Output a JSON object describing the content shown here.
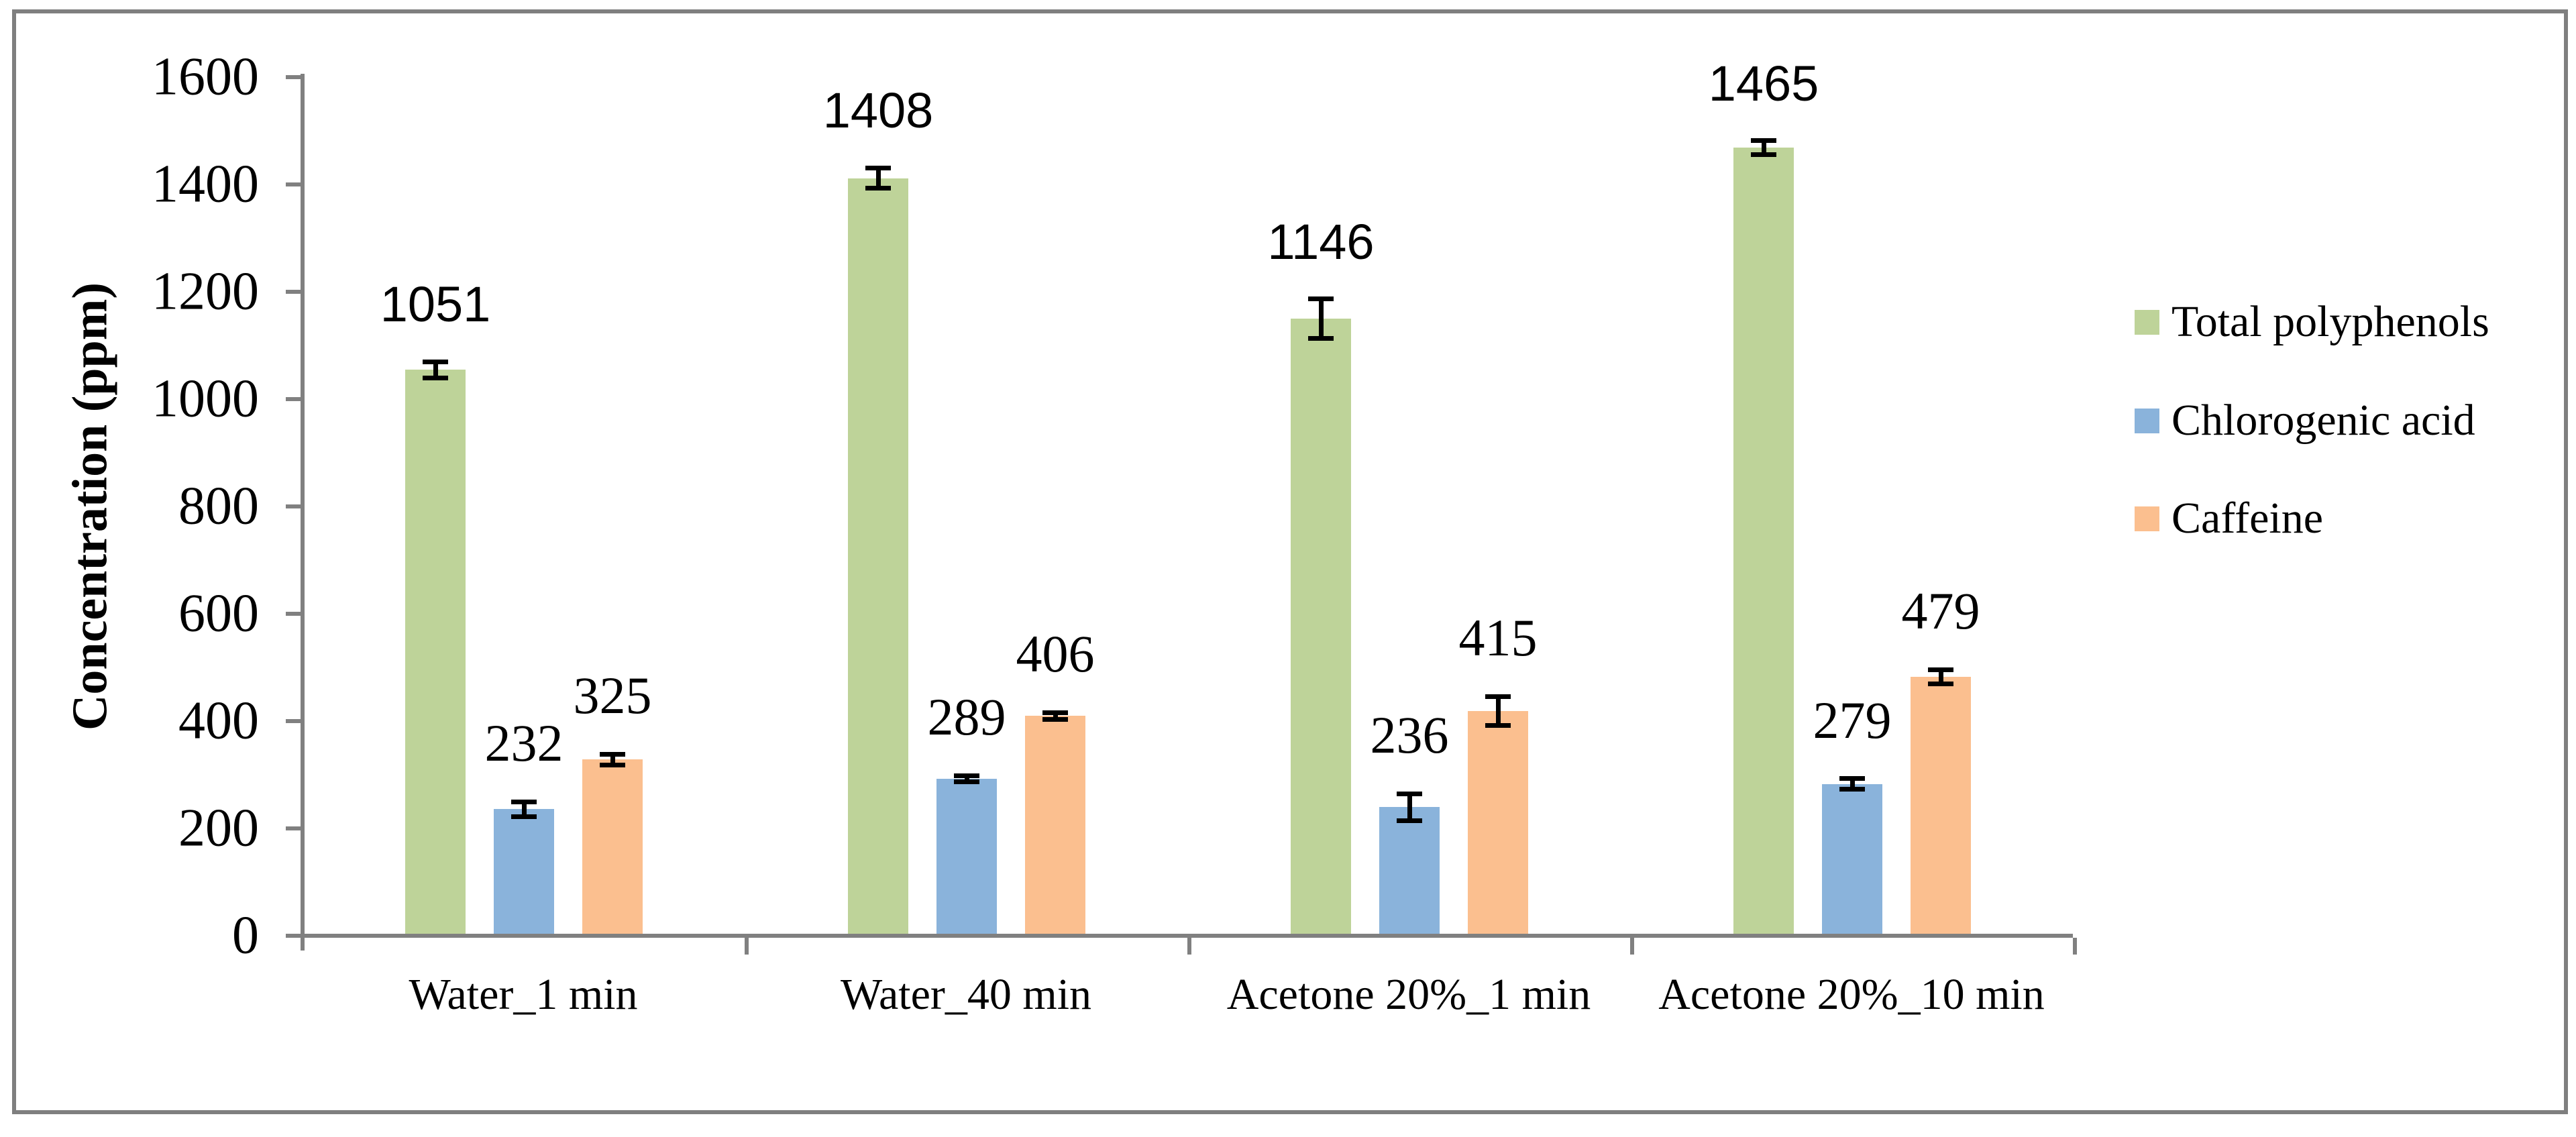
{
  "chart_data": {
    "type": "bar",
    "title": "",
    "xlabel": "",
    "ylabel": "Concentration (ppm)",
    "ylim": [
      0,
      1600
    ],
    "ytick_step": 200,
    "y_tick_labels": [
      "0",
      "200",
      "400",
      "600",
      "800",
      "1000",
      "1200",
      "1400",
      "1600"
    ],
    "grid": false,
    "legend_position": "right",
    "axis_color": "#808080",
    "error_bar_color": "#000000",
    "categories": [
      "Water_1 min",
      "Water_40 min",
      "Acetone 20%_1 min",
      "Acetone 20%_10 min"
    ],
    "series": [
      {
        "name": "Total polyphenols",
        "color": "#bed399",
        "label_font": "sans",
        "values": [
          1051,
          1408,
          1146,
          1465
        ],
        "errors": [
          15,
          19,
          37,
          13
        ]
      },
      {
        "name": "Chlorogenic acid",
        "color": "#8ab3db",
        "label_font": "serif",
        "values": [
          232,
          289,
          236,
          279
        ],
        "errors": [
          14,
          6,
          25,
          10
        ]
      },
      {
        "name": "Caffeine",
        "color": "#fbbf8f",
        "label_font": "serif",
        "values": [
          325,
          406,
          415,
          479
        ],
        "errors": [
          10,
          6,
          27,
          13
        ]
      }
    ]
  }
}
